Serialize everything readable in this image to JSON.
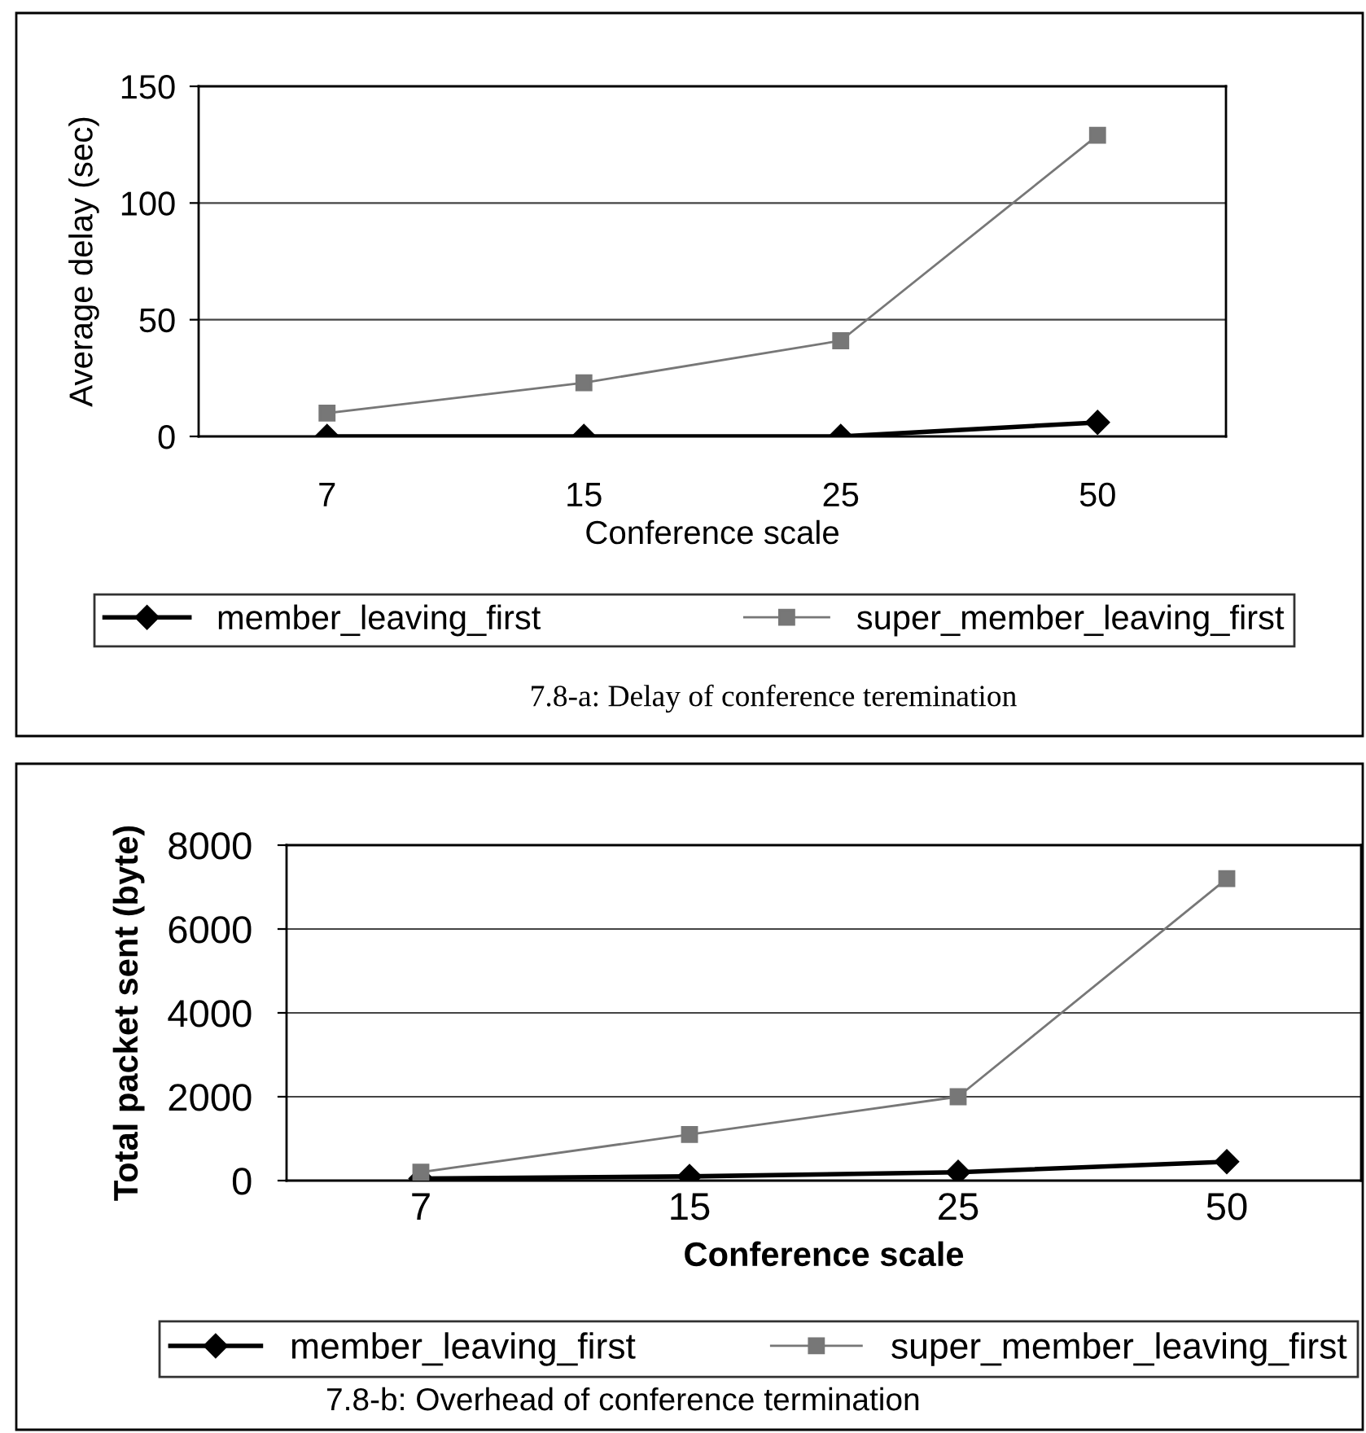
{
  "chart_data": [
    {
      "type": "line",
      "categories": [
        "7",
        "15",
        "25",
        "50"
      ],
      "xlabel": "Conference scale",
      "ylabel": "Average delay (sec)",
      "ylim": [
        0,
        150
      ],
      "yticks": [
        0,
        50,
        100,
        150
      ],
      "grid": "y",
      "legend": "bottom",
      "line_style": "solid",
      "series": [
        {
          "name": "member_leaving_first",
          "color": "#000000",
          "marker": "diamond",
          "values": [
            0,
            0,
            0,
            6
          ]
        },
        {
          "name": "super_member_leaving_first",
          "color": "#777777",
          "marker": "square",
          "values": [
            10,
            23,
            41,
            129
          ]
        }
      ],
      "annotations": [
        "7.8-a: Delay of conference teremination"
      ]
    },
    {
      "type": "line",
      "categories": [
        "7",
        "15",
        "25",
        "50"
      ],
      "xlabel": "Conference scale",
      "ylabel": "Total packet sent (byte)",
      "ylim": [
        0,
        8000
      ],
      "yticks": [
        0,
        2000,
        4000,
        6000,
        8000
      ],
      "grid": "y",
      "legend": "bottom",
      "line_style": "solid",
      "series": [
        {
          "name": "member_leaving_first",
          "color": "#000000",
          "marker": "diamond",
          "values": [
            50,
            100,
            200,
            450
          ]
        },
        {
          "name": "super_member_leaving_first",
          "color": "#777777",
          "marker": "square",
          "values": [
            200,
            1100,
            2000,
            7200
          ]
        }
      ],
      "annotations": [
        "7.8-b: Overhead of conference termination"
      ]
    }
  ]
}
